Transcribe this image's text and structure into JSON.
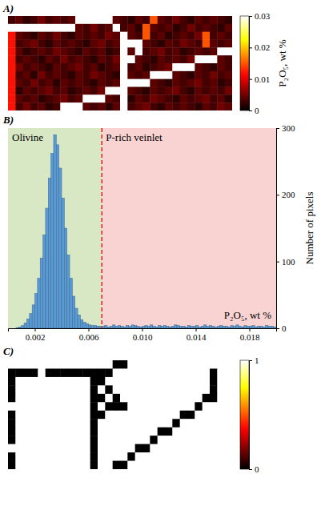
{
  "chart_data": [
    {
      "type": "heatmap",
      "label": "A)",
      "color": "hot",
      "colorbar_label": "P₂O₅, wt %",
      "colorbar_range": [
        0,
        0.03
      ],
      "colorbar_ticks": [
        0,
        0.01,
        0.02,
        0.03
      ],
      "cells": [
        [
          0.003,
          0.004,
          0.002,
          0.003,
          0.005,
          0.003,
          0.004,
          0.003,
          0.004,
          0.03,
          0.03,
          0.03,
          0.03,
          0.03,
          0.004,
          0.003,
          0.002,
          0.004,
          0.003,
          0.015,
          0.004,
          0.003,
          0.005,
          0.003,
          0.002,
          0.004,
          0.003,
          0.004,
          0.003,
          0.002
        ],
        [
          0.03,
          0.03,
          0.03,
          0.03,
          0.03,
          0.03,
          0.03,
          0.03,
          0.03,
          0.004,
          0.003,
          0.005,
          0.003,
          0.004,
          0.03,
          0.003,
          0.004,
          0.002,
          0.015,
          0.004,
          0.003,
          0.004,
          0.002,
          0.003,
          0.005,
          0.003,
          0.004,
          0.003,
          0.002,
          0.004
        ],
        [
          0.012,
          0.004,
          0.003,
          0.002,
          0.004,
          0.003,
          0.005,
          0.003,
          0.002,
          0.004,
          0.003,
          0.004,
          0.003,
          0.005,
          0.004,
          0.03,
          0.004,
          0.003,
          0.015,
          0.003,
          0.004,
          0.002,
          0.003,
          0.004,
          0.003,
          0.005,
          0.015,
          0.003,
          0.004,
          0.003
        ],
        [
          0.012,
          0.003,
          0.004,
          0.005,
          0.003,
          0.002,
          0.004,
          0.003,
          0.004,
          0.003,
          0.002,
          0.004,
          0.005,
          0.003,
          0.004,
          0.03,
          0.03,
          0.03,
          0.004,
          0.003,
          0.002,
          0.004,
          0.003,
          0.005,
          0.004,
          0.003,
          0.015,
          0.004,
          0.003,
          0.004
        ],
        [
          0.012,
          0.004,
          0.002,
          0.003,
          0.004,
          0.003,
          0.005,
          0.004,
          0.003,
          0.002,
          0.004,
          0.003,
          0.004,
          0.002,
          0.003,
          0.03,
          0.004,
          0.03,
          0.003,
          0.004,
          0.005,
          0.003,
          0.004,
          0.002,
          0.003,
          0.004,
          0.003,
          0.004,
          0.03,
          0.03
        ],
        [
          0.012,
          0.003,
          0.004,
          0.003,
          0.002,
          0.004,
          0.003,
          0.005,
          0.003,
          0.004,
          0.003,
          0.002,
          0.004,
          0.003,
          0.005,
          0.03,
          0.03,
          0.004,
          0.003,
          0.002,
          0.004,
          0.003,
          0.004,
          0.003,
          0.005,
          0.03,
          0.03,
          0.03,
          0.004,
          0.003
        ],
        [
          0.012,
          0.005,
          0.003,
          0.004,
          0.003,
          0.002,
          0.004,
          0.003,
          0.004,
          0.005,
          0.003,
          0.004,
          0.002,
          0.003,
          0.004,
          0.03,
          0.003,
          0.004,
          0.002,
          0.003,
          0.004,
          0.005,
          0.03,
          0.03,
          0.03,
          0.004,
          0.003,
          0.002,
          0.004,
          0.003
        ],
        [
          0.012,
          0.003,
          0.004,
          0.002,
          0.005,
          0.003,
          0.004,
          0.003,
          0.002,
          0.004,
          0.003,
          0.005,
          0.004,
          0.003,
          0.002,
          0.03,
          0.004,
          0.003,
          0.004,
          0.03,
          0.03,
          0.03,
          0.004,
          0.003,
          0.002,
          0.004,
          0.003,
          0.005,
          0.003,
          0.004
        ],
        [
          0.012,
          0.004,
          0.003,
          0.005,
          0.003,
          0.004,
          0.002,
          0.004,
          0.003,
          0.004,
          0.003,
          0.002,
          0.004,
          0.003,
          0.004,
          0.03,
          0.03,
          0.03,
          0.03,
          0.004,
          0.003,
          0.002,
          0.004,
          0.003,
          0.004,
          0.005,
          0.003,
          0.004,
          0.002,
          0.003
        ],
        [
          0.012,
          0.002,
          0.004,
          0.003,
          0.004,
          0.005,
          0.003,
          0.004,
          0.002,
          0.003,
          0.004,
          0.003,
          0.005,
          0.03,
          0.03,
          0.03,
          0.004,
          0.003,
          0.002,
          0.004,
          0.003,
          0.004,
          0.005,
          0.003,
          0.002,
          0.004,
          0.003,
          0.004,
          0.003,
          0.005
        ],
        [
          0.012,
          0.004,
          0.003,
          0.004,
          0.002,
          0.003,
          0.004,
          0.005,
          0.003,
          0.004,
          0.03,
          0.03,
          0.03,
          0.004,
          0.003,
          0.03,
          0.002,
          0.004,
          0.003,
          0.005,
          0.004,
          0.003,
          0.002,
          0.004,
          0.003,
          0.004,
          0.005,
          0.003,
          0.004,
          0.002
        ],
        [
          0.012,
          0.003,
          0.005,
          0.003,
          0.004,
          0.002,
          0.003,
          0.03,
          0.03,
          0.03,
          0.004,
          0.003,
          0.004,
          0.002,
          0.004,
          0.03,
          0.003,
          0.004,
          0.005,
          0.003,
          0.002,
          0.004,
          0.003,
          0.004,
          0.003,
          0.002,
          0.004,
          0.003,
          0.005,
          0.004
        ]
      ]
    },
    {
      "type": "histogram",
      "label": "B)",
      "color": "#5b9bd5",
      "x_label": "P₂O₅, wt %",
      "y_label": "Number of pixels",
      "xlim": [
        0,
        0.02
      ],
      "xticks": [
        0.002,
        0.006,
        {
          "value": 0.01,
          "label": "0.010"
        },
        0.014,
        0.018
      ],
      "ylim": [
        0,
        300
      ],
      "yticks": [
        0,
        100,
        200,
        300
      ],
      "regions": [
        {
          "label": "Olivine",
          "range": [
            0,
            0.007
          ],
          "color": "#d9e8c4"
        },
        {
          "label": "P-rich veinlet",
          "range": [
            0.007,
            0.02
          ],
          "color": "#f9d2d2"
        }
      ],
      "threshold": {
        "value": 0.007,
        "color": "#e02020",
        "line_style": "dashed"
      },
      "bins": [
        0,
        0.0002,
        0.0004,
        0.0006,
        0.0008,
        0.001,
        0.0012,
        0.0014,
        0.0016,
        0.0018,
        0.002,
        0.0022,
        0.0024,
        0.0026,
        0.0028,
        0.003,
        0.0032,
        0.0034,
        0.0036,
        0.0038,
        0.004,
        0.0042,
        0.0044,
        0.0046,
        0.0048,
        0.005,
        0.0052,
        0.0054,
        0.0056,
        0.0058,
        0.006,
        0.0062,
        0.0064,
        0.0066,
        0.0068,
        0.007,
        0.0072,
        0.0074,
        0.0076,
        0.0078,
        0.008,
        0.0082,
        0.0084,
        0.0086,
        0.0088,
        0.009,
        0.0092,
        0.0094,
        0.0096,
        0.0098,
        0.01,
        0.0102,
        0.0104,
        0.0106,
        0.0108,
        0.011,
        0.0112,
        0.0114,
        0.0116,
        0.0118,
        0.012,
        0.0122,
        0.0124,
        0.0126,
        0.0128,
        0.013,
        0.0132,
        0.0134,
        0.0136,
        0.0138,
        0.014,
        0.0142,
        0.0144,
        0.0146,
        0.0148,
        0.015,
        0.0152,
        0.0154,
        0.0156,
        0.0158,
        0.016,
        0.0162,
        0.0164,
        0.0166,
        0.0168,
        0.017,
        0.0172,
        0.0174,
        0.0176,
        0.0178,
        0.018,
        0.0182,
        0.0184,
        0.0186,
        0.0188,
        0.019,
        0.0192,
        0.0194,
        0.0196,
        0.0198,
        0.02
      ],
      "values": [
        0,
        0,
        0,
        1,
        2,
        4,
        8,
        14,
        22,
        35,
        52,
        75,
        105,
        140,
        180,
        225,
        262,
        290,
        275,
        240,
        195,
        150,
        110,
        75,
        48,
        30,
        20,
        13,
        9,
        7,
        5,
        4,
        4,
        3,
        3,
        3,
        4,
        2,
        3,
        5,
        3,
        4,
        3,
        2,
        4,
        3,
        5,
        4,
        3,
        2,
        3,
        4,
        3,
        5,
        3,
        2,
        4,
        3,
        4,
        3,
        2,
        3,
        5,
        4,
        3,
        3,
        2,
        4,
        3,
        3,
        4,
        2,
        3,
        5,
        3,
        4,
        3,
        2,
        3,
        4,
        3,
        3,
        2,
        4,
        3,
        5,
        3,
        2,
        4,
        3,
        3,
        4,
        2,
        3,
        3,
        2,
        4,
        3,
        3,
        2
      ]
    },
    {
      "type": "heatmap",
      "label": "C)",
      "color": "hot",
      "colorbar_range": [
        0,
        1
      ],
      "colorbar_ticks": [
        0,
        1
      ],
      "cells": [
        [
          1,
          1,
          1,
          1,
          1,
          1,
          1,
          1,
          1,
          1,
          1,
          1,
          1,
          1,
          0,
          0,
          1,
          1,
          1,
          1,
          1,
          1,
          1,
          1,
          1,
          1,
          1,
          1,
          1,
          1
        ],
        [
          0,
          0,
          0,
          0,
          1,
          0,
          0,
          0,
          0,
          0,
          0,
          0,
          0,
          0,
          1,
          1,
          1,
          1,
          1,
          1,
          1,
          1,
          1,
          1,
          1,
          1,
          1,
          0,
          1,
          1
        ],
        [
          0,
          1,
          1,
          1,
          1,
          1,
          1,
          1,
          1,
          1,
          1,
          0,
          0,
          1,
          1,
          1,
          1,
          1,
          1,
          1,
          1,
          1,
          1,
          1,
          1,
          1,
          1,
          0,
          1,
          1
        ],
        [
          0,
          1,
          1,
          1,
          1,
          1,
          1,
          1,
          1,
          1,
          1,
          0,
          1,
          0,
          1,
          1,
          1,
          1,
          1,
          1,
          1,
          1,
          1,
          1,
          1,
          1,
          1,
          0,
          1,
          1
        ],
        [
          0,
          1,
          1,
          1,
          1,
          1,
          1,
          1,
          1,
          1,
          1,
          0,
          0,
          1,
          0,
          1,
          1,
          1,
          1,
          1,
          1,
          1,
          1,
          1,
          1,
          1,
          0,
          0,
          1,
          1
        ],
        [
          1,
          1,
          1,
          1,
          1,
          1,
          1,
          1,
          1,
          1,
          1,
          0,
          1,
          0,
          0,
          0,
          1,
          1,
          1,
          1,
          1,
          1,
          1,
          1,
          1,
          0,
          1,
          1,
          1,
          1
        ],
        [
          0,
          1,
          1,
          1,
          1,
          1,
          1,
          1,
          1,
          1,
          1,
          0,
          0,
          1,
          1,
          1,
          1,
          1,
          1,
          1,
          1,
          1,
          1,
          0,
          0,
          1,
          1,
          1,
          1,
          1
        ],
        [
          0,
          1,
          1,
          1,
          1,
          1,
          1,
          1,
          1,
          1,
          1,
          0,
          1,
          1,
          1,
          1,
          1,
          1,
          1,
          1,
          1,
          1,
          0,
          1,
          1,
          1,
          1,
          1,
          1,
          1
        ],
        [
          0,
          1,
          1,
          1,
          1,
          1,
          1,
          1,
          1,
          1,
          1,
          0,
          1,
          1,
          1,
          1,
          1,
          1,
          1,
          1,
          0,
          0,
          1,
          1,
          1,
          1,
          1,
          1,
          1,
          1
        ],
        [
          0,
          1,
          1,
          1,
          1,
          1,
          1,
          1,
          1,
          1,
          1,
          0,
          1,
          1,
          1,
          1,
          1,
          1,
          1,
          0,
          1,
          1,
          1,
          1,
          1,
          1,
          1,
          1,
          1,
          1
        ],
        [
          1,
          1,
          1,
          1,
          1,
          1,
          1,
          1,
          1,
          1,
          1,
          0,
          1,
          1,
          1,
          1,
          1,
          0,
          0,
          1,
          1,
          1,
          1,
          1,
          1,
          1,
          1,
          1,
          1,
          1
        ],
        [
          0,
          1,
          1,
          1,
          1,
          1,
          1,
          1,
          1,
          1,
          1,
          0,
          1,
          1,
          1,
          1,
          0,
          1,
          1,
          1,
          1,
          1,
          1,
          1,
          1,
          1,
          1,
          1,
          1,
          1
        ],
        [
          0,
          1,
          1,
          1,
          1,
          1,
          1,
          1,
          1,
          1,
          1,
          0,
          1,
          1,
          0,
          0,
          1,
          1,
          1,
          1,
          1,
          1,
          1,
          1,
          1,
          1,
          1,
          1,
          1,
          1
        ]
      ]
    }
  ]
}
